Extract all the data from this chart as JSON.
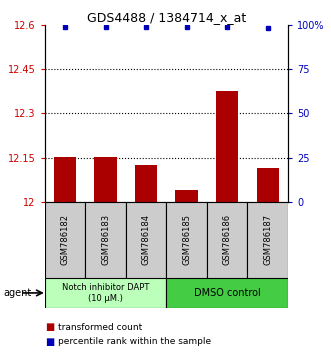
{
  "title": "GDS4488 / 1384714_x_at",
  "samples": [
    "GSM786182",
    "GSM786183",
    "GSM786184",
    "GSM786185",
    "GSM786186",
    "GSM786187"
  ],
  "bar_values": [
    12.152,
    12.152,
    12.125,
    12.04,
    12.375,
    12.115
  ],
  "dot_values": [
    99,
    99,
    99,
    99,
    99,
    98
  ],
  "ylim_left": [
    12.0,
    12.6
  ],
  "ylim_right": [
    0,
    100
  ],
  "yticks_left": [
    12.0,
    12.15,
    12.3,
    12.45,
    12.6
  ],
  "ytick_labels_left": [
    "12",
    "12.15",
    "12.3",
    "12.45",
    "12.6"
  ],
  "yticks_right": [
    0,
    25,
    50,
    75,
    100
  ],
  "ytick_labels_right": [
    "0",
    "25",
    "50",
    "75",
    "100%"
  ],
  "hlines": [
    12.15,
    12.3,
    12.45
  ],
  "bar_color": "#aa0000",
  "dot_color": "#0000bb",
  "group1_label": "Notch inhibitor DAPT\n(10 μM.)",
  "group2_label": "DMSO control",
  "group1_color": "#bbffbb",
  "group2_color": "#44cc44",
  "agent_label": "agent",
  "legend_bar_label": "transformed count",
  "legend_dot_label": "percentile rank within the sample",
  "left_tick_color": "#cc0000",
  "right_tick_color": "#0000bb",
  "group1_samples": [
    0,
    1,
    2
  ],
  "group2_samples": [
    3,
    4,
    5
  ],
  "sample_bg_color": "#cccccc",
  "bar_width": 0.55
}
